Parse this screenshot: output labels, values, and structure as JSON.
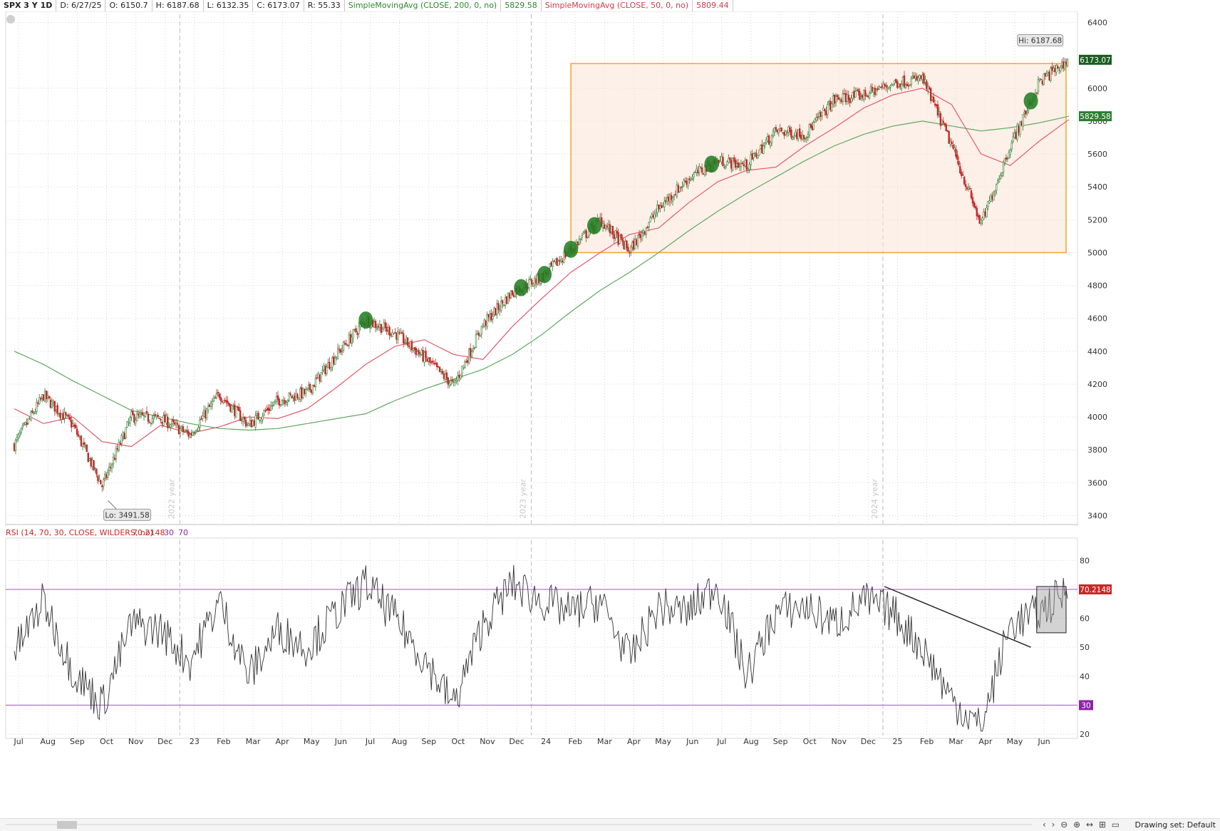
{
  "header": {
    "symbol": "SPX 3 Y 1D",
    "date": "D: 6/27/25",
    "open": "O: 6150.7",
    "high": "H: 6187.68",
    "low": "L: 6132.35",
    "close": "C: 6173.07",
    "range": "R: 55.33",
    "sma200_label": "SimpleMovingAvg (CLOSE, 200, 0, no)",
    "sma200_value": "5829.58",
    "sma50_label": "SimpleMovingAvg (CLOSE, 50, 0, no)",
    "sma50_value": "5809.44"
  },
  "rsi_header": {
    "label": "RSI (14, 70, 30, CLOSE, WILDERS, no)",
    "value": "70.2148",
    "oversold": "30",
    "overbought": "70"
  },
  "footer": {
    "drawing_set": "Drawing set: Default"
  },
  "colors": {
    "up": "#2e7d32",
    "down": "#c62828",
    "sma50": "#e05a6a",
    "sma200": "#5fa85f",
    "box": "#f5a623",
    "rsi_line": "#333333",
    "rsi_level": "#b04ad6",
    "highlight": "#1e7a1e"
  },
  "chart_data": [
    {
      "type": "candlestick",
      "title": "SPX 3 Y 1D",
      "ylim": [
        3350,
        6450
      ],
      "y_ticks": [
        3400,
        3600,
        3800,
        4000,
        4200,
        4400,
        4600,
        4800,
        5000,
        5200,
        5400,
        5600,
        5800,
        6000,
        6400
      ],
      "x_labels": [
        "Jul",
        "Aug",
        "Sep",
        "Oct",
        "Nov",
        "Dec",
        "23",
        "Feb",
        "Mar",
        "Apr",
        "May",
        "Jun",
        "Jul",
        "Aug",
        "Sep",
        "Oct",
        "Nov",
        "Dec",
        "24",
        "Feb",
        "Mar",
        "Apr",
        "May",
        "Jun",
        "Jul",
        "Aug",
        "Sep",
        "Oct",
        "Nov",
        "Dec",
        "25",
        "Feb",
        "Mar",
        "Apr",
        "May",
        "Jun"
      ],
      "year_separators": [
        {
          "label": "2022 year",
          "month_index": 6
        },
        {
          "label": "2023 year",
          "month_index": 18
        },
        {
          "label": "2024 year",
          "month_index": 30
        }
      ],
      "price_path_monthly": [
        3830,
        4130,
        3950,
        3580,
        4000,
        3990,
        3890,
        4140,
        3950,
        4100,
        4150,
        4380,
        4590,
        4510,
        4360,
        4190,
        4560,
        4760,
        4850,
        5020,
        5200,
        5010,
        5270,
        5450,
        5560,
        5530,
        5740,
        5720,
        5930,
        5960,
        6030,
        6060,
        5650,
        5170,
        5650,
        6040,
        6173
      ],
      "sma200_monthly": [
        4400,
        4320,
        4220,
        4130,
        4040,
        4000,
        3960,
        3930,
        3920,
        3930,
        3960,
        3990,
        4020,
        4100,
        4170,
        4230,
        4290,
        4380,
        4500,
        4640,
        4770,
        4880,
        5000,
        5130,
        5250,
        5360,
        5460,
        5560,
        5650,
        5720,
        5770,
        5800,
        5770,
        5740,
        5760,
        5790,
        5829.58
      ],
      "sma50_monthly": [
        4050,
        3960,
        4000,
        3850,
        3820,
        3950,
        3900,
        3940,
        4000,
        3990,
        4050,
        4180,
        4320,
        4430,
        4470,
        4380,
        4350,
        4550,
        4720,
        4880,
        5000,
        5110,
        5150,
        5300,
        5430,
        5500,
        5520,
        5650,
        5760,
        5880,
        5960,
        6000,
        5900,
        5600,
        5530,
        5680,
        5809.44
      ],
      "last_close": 6173.07,
      "sma200_last": 5829.58,
      "high_marker": {
        "text": "Hi: 6187.68",
        "value": 6187.68
      },
      "low_marker": {
        "text": "Lo: 3491.58",
        "value": 3491.58,
        "month": 3.2
      },
      "price_tag": "6173.07",
      "sma200_tag": "5829.58",
      "range_box": {
        "from_month": 19,
        "to_month": 36,
        "low": 5000,
        "high": 6150
      },
      "highlight_months": [
        12,
        17.3,
        18.1,
        19,
        19.8,
        23.8,
        34.7
      ]
    },
    {
      "type": "line",
      "title": "RSI (14, 70, 30, CLOSE, WILDERS, no)",
      "ylim": [
        20,
        86
      ],
      "y_ticks": [
        20,
        30,
        40,
        50,
        60,
        80
      ],
      "levels": [
        30,
        70
      ],
      "level_tags": [
        "30",
        "70.2148"
      ],
      "rsi_monthly": [
        48,
        66,
        42,
        30,
        58,
        56,
        45,
        66,
        40,
        56,
        50,
        62,
        72,
        60,
        46,
        30,
        58,
        72,
        66,
        62,
        66,
        46,
        64,
        62,
        72,
        40,
        62,
        64,
        58,
        66,
        62,
        50,
        32,
        22,
        58,
        62,
        70.2148
      ],
      "trendline": {
        "from_month": 29.7,
        "from_value": 71,
        "to_month": 34.7,
        "to_value": 50
      },
      "shaded_box": {
        "from_month": 34.9,
        "to_month": 36,
        "low": 55,
        "high": 71
      }
    }
  ]
}
